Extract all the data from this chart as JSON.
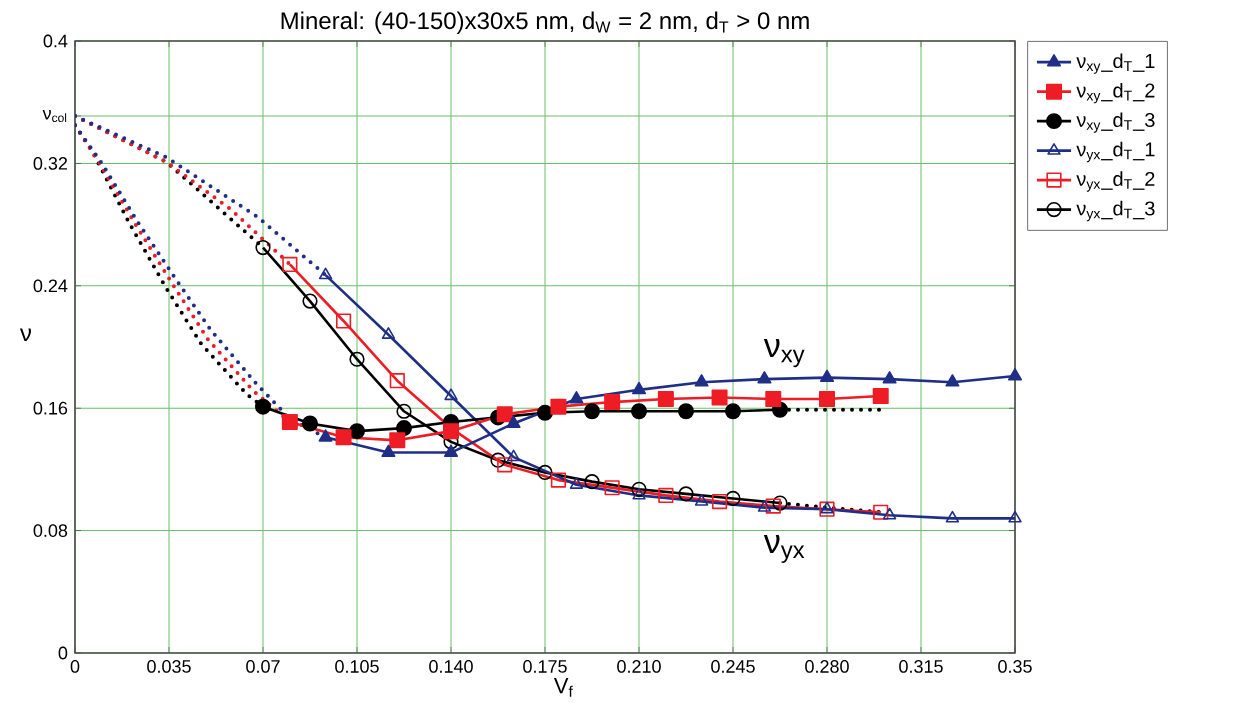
{
  "chart_data": {
    "type": "line",
    "title": "Mineral: (40-150)x30x5 nm, d$_{W}$ = 2 nm, d$_{T}$ > 0 nm",
    "xlabel": "V$_{f}$",
    "ylabel": "ν",
    "xlim": [
      0,
      0.35
    ],
    "ylim": [
      0,
      0.4
    ],
    "xticks": [
      0,
      0.035,
      0.07,
      0.105,
      {
        "value": 0.14,
        "label": "0.140"
      },
      0.175,
      {
        "value": 0.21,
        "label": "0.210"
      },
      0.245,
      {
        "value": 0.28,
        "label": "0.280"
      },
      0.315,
      0.35
    ],
    "yticks": [
      0,
      0.08,
      0.16,
      0.24,
      0.32,
      {
        "value": 0.351,
        "label": "ν$_{col}$"
      },
      0.4
    ],
    "grid": true,
    "legend": "top right",
    "annotations": [
      "ν$_{xy}$",
      "ν$_{yx}$"
    ],
    "series": [
      {
        "name": "ν$_{xy}$_d$_{T}$_1",
        "color": "#1f2f87",
        "marker": "triangle",
        "line_style": "solid",
        "x": [
          0.0933,
          0.1167,
          0.14,
          0.1633,
          0.1867,
          0.21,
          0.2333,
          0.2567,
          0.28,
          0.3033,
          0.3267,
          0.35
        ],
        "values": [
          0.141,
          0.131,
          0.131,
          0.15,
          0.166,
          0.172,
          0.177,
          0.179,
          0.18,
          0.179,
          0.177,
          0.181
        ]
      },
      {
        "name": "ν$_{xy}$_d$_{T}$_2",
        "color": "#ee1c25",
        "marker": "square",
        "line_style": "solid",
        "x": [
          0.08,
          0.1,
          0.12,
          0.14,
          0.16,
          0.18,
          0.2,
          0.22,
          0.24,
          0.26,
          0.28,
          0.3
        ],
        "values": [
          0.151,
          0.141,
          0.139,
          0.145,
          0.156,
          0.161,
          0.164,
          0.166,
          0.167,
          0.166,
          0.166,
          0.168
        ]
      },
      {
        "name": "ν$_{xy}$_d$_{T}$_3",
        "color": "#000000",
        "marker": "circle",
        "line_style": "solid",
        "x": [
          0.07,
          0.0875,
          0.105,
          0.1225,
          0.14,
          0.1575,
          0.175,
          0.1925,
          0.21,
          0.2275,
          0.245,
          0.2625
        ],
        "values": [
          0.161,
          0.15,
          0.145,
          0.147,
          0.151,
          0.154,
          0.157,
          0.158,
          0.158,
          0.158,
          0.158,
          0.159
        ]
      },
      {
        "name": "ν$_{yx}$_d$_{T}$_1",
        "color": "#1f2f87",
        "marker": "triangle",
        "line_style": "solid",
        "x": [
          0.0933,
          0.1167,
          0.14,
          0.1633,
          0.1867,
          0.21,
          0.2333,
          0.2567,
          0.28,
          0.3033,
          0.3267,
          0.35
        ],
        "values": [
          0.247,
          0.208,
          0.168,
          0.128,
          0.11,
          0.103,
          0.099,
          0.095,
          0.094,
          0.09,
          0.088,
          0.088
        ]
      },
      {
        "name": "ν$_{yx}$_d$_{T}$_2",
        "color": "#ee1c25",
        "marker": "square",
        "line_style": "solid",
        "x": [
          0.08,
          0.1,
          0.12,
          0.14,
          0.16,
          0.18,
          0.2,
          0.22,
          0.24,
          0.26,
          0.28,
          0.3
        ],
        "values": [
          0.254,
          0.217,
          0.178,
          0.147,
          0.123,
          0.113,
          0.108,
          0.103,
          0.099,
          0.096,
          0.094,
          0.092
        ]
      },
      {
        "name": "ν$_{yx}$_d$_{T}$_3",
        "color": "#000000",
        "marker": "circle",
        "line_style": "solid",
        "x": [
          0.07,
          0.0875,
          0.105,
          0.1225,
          0.14,
          0.1575,
          0.175,
          0.1925,
          0.21,
          0.2275,
          0.245,
          0.2625
        ],
        "values": [
          0.265,
          0.23,
          0.192,
          0.158,
          0.138,
          0.126,
          0.118,
          0.112,
          0.107,
          0.104,
          0.101,
          0.098
        ]
      },
      {
        "color": "#1f2f87",
        "marker": "none",
        "line_style": "dotted",
        "x": [
          0,
          0.034,
          0.068,
          0.0933
        ],
        "values": [
          0.351,
          0.324,
          0.285,
          0.247
        ]
      },
      {
        "color": "#ee1c25",
        "marker": "none",
        "line_style": "dotted",
        "x": [
          0,
          0.034,
          0.058,
          0.08
        ],
        "values": [
          0.351,
          0.321,
          0.29,
          0.254
        ]
      },
      {
        "color": "#000000",
        "marker": "none",
        "line_style": "dotted",
        "x": [
          0,
          0.034,
          0.07
        ],
        "values": [
          0.351,
          0.321,
          0.265
        ]
      },
      {
        "color": "#1f2f87",
        "marker": "none",
        "line_style": "dotted",
        "x": [
          0,
          0.01,
          0.0236,
          0.0373,
          0.0506,
          0.0675,
          0.08,
          0.0933
        ],
        "values": [
          0.345,
          0.32,
          0.281,
          0.245,
          0.211,
          0.176,
          0.153,
          0.141
        ]
      },
      {
        "color": "#ee1c25",
        "marker": "none",
        "line_style": "dotted",
        "x": [
          0,
          0.0085,
          0.0222,
          0.036,
          0.0495,
          0.066,
          0.08
        ],
        "values": [
          0.345,
          0.322,
          0.281,
          0.242,
          0.205,
          0.172,
          0.151
        ]
      },
      {
        "color": "#000000",
        "marker": "none",
        "line_style": "dotted",
        "x": [
          0,
          0.0067,
          0.0202,
          0.0338,
          0.047,
          0.064,
          0.07
        ],
        "values": [
          0.345,
          0.327,
          0.281,
          0.239,
          0.202,
          0.169,
          0.161
        ]
      },
      {
        "color": "#000000",
        "marker": "none",
        "line_style": "dotted",
        "x": [
          0.2625,
          0.28,
          0.3
        ],
        "values": [
          0.159,
          0.159,
          0.159
        ]
      },
      {
        "color": "#000000",
        "marker": "none",
        "line_style": "dotted",
        "x": [
          0.2625,
          0.28,
          0.3
        ],
        "values": [
          0.098,
          0.095,
          0.092
        ]
      }
    ]
  }
}
